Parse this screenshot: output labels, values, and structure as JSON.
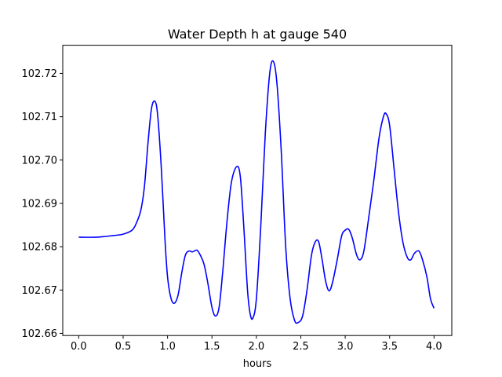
{
  "chart_data": {
    "type": "line",
    "title": "Water Depth h at gauge 540",
    "xlabel": "hours",
    "ylabel": "",
    "xlim": [
      -0.18,
      4.2
    ],
    "ylim": [
      102.6595,
      102.7265
    ],
    "xticks": [
      0.0,
      0.5,
      1.0,
      1.5,
      2.0,
      2.5,
      3.0,
      3.5,
      4.0
    ],
    "xtick_labels": [
      "0.0",
      "0.5",
      "1.0",
      "1.5",
      "2.0",
      "2.5",
      "3.0",
      "3.5",
      "4.0"
    ],
    "yticks": [
      102.66,
      102.67,
      102.68,
      102.69,
      102.7,
      102.71,
      102.72
    ],
    "ytick_labels": [
      "102.66",
      "102.67",
      "102.68",
      "102.69",
      "102.70",
      "102.71",
      "102.72"
    ],
    "grid": false,
    "series": [
      {
        "color": "#0000ff",
        "points": [
          [
            0.0,
            102.6822
          ],
          [
            0.2,
            102.6822
          ],
          [
            0.4,
            102.6826
          ],
          [
            0.5,
            102.6829
          ],
          [
            0.6,
            102.6838
          ],
          [
            0.65,
            102.6855
          ],
          [
            0.7,
            102.6885
          ],
          [
            0.74,
            102.694
          ],
          [
            0.78,
            102.704
          ],
          [
            0.82,
            102.712
          ],
          [
            0.86,
            102.7135
          ],
          [
            0.89,
            102.71
          ],
          [
            0.93,
            102.698
          ],
          [
            0.97,
            102.682
          ],
          [
            1.0,
            102.673
          ],
          [
            1.04,
            102.668
          ],
          [
            1.08,
            102.667
          ],
          [
            1.12,
            102.669
          ],
          [
            1.16,
            102.674
          ],
          [
            1.2,
            102.678
          ],
          [
            1.24,
            102.679
          ],
          [
            1.28,
            102.6788
          ],
          [
            1.33,
            102.6792
          ],
          [
            1.37,
            102.678
          ],
          [
            1.41,
            102.676
          ],
          [
            1.45,
            102.672
          ],
          [
            1.5,
            102.666
          ],
          [
            1.54,
            102.664
          ],
          [
            1.58,
            102.666
          ],
          [
            1.62,
            102.674
          ],
          [
            1.67,
            102.686
          ],
          [
            1.72,
            102.695
          ],
          [
            1.78,
            102.6985
          ],
          [
            1.82,
            102.696
          ],
          [
            1.86,
            102.684
          ],
          [
            1.9,
            102.67
          ],
          [
            1.93,
            102.6645
          ],
          [
            1.96,
            102.6635
          ],
          [
            2.0,
            102.668
          ],
          [
            2.05,
            102.685
          ],
          [
            2.1,
            102.706
          ],
          [
            2.15,
            102.72
          ],
          [
            2.19,
            102.7228
          ],
          [
            2.23,
            102.718
          ],
          [
            2.28,
            102.702
          ],
          [
            2.33,
            102.68
          ],
          [
            2.38,
            102.668
          ],
          [
            2.43,
            102.663
          ],
          [
            2.47,
            102.6625
          ],
          [
            2.52,
            102.664
          ],
          [
            2.57,
            102.67
          ],
          [
            2.62,
            102.678
          ],
          [
            2.66,
            102.681
          ],
          [
            2.7,
            102.6812
          ],
          [
            2.74,
            102.677
          ],
          [
            2.78,
            102.672
          ],
          [
            2.82,
            102.6698
          ],
          [
            2.86,
            102.672
          ],
          [
            2.91,
            102.677
          ],
          [
            2.96,
            102.6825
          ],
          [
            3.0,
            102.6838
          ],
          [
            3.04,
            102.684
          ],
          [
            3.08,
            102.682
          ],
          [
            3.13,
            102.678
          ],
          [
            3.17,
            102.677
          ],
          [
            3.21,
            102.679
          ],
          [
            3.26,
            102.686
          ],
          [
            3.32,
            102.695
          ],
          [
            3.38,
            102.705
          ],
          [
            3.43,
            102.71
          ],
          [
            3.46,
            102.7107
          ],
          [
            3.5,
            102.708
          ],
          [
            3.55,
            102.698
          ],
          [
            3.6,
            102.688
          ],
          [
            3.65,
            102.681
          ],
          [
            3.7,
            102.6775
          ],
          [
            3.74,
            102.677
          ],
          [
            3.78,
            102.6785
          ],
          [
            3.83,
            102.679
          ],
          [
            3.87,
            102.677
          ],
          [
            3.92,
            102.673
          ],
          [
            3.96,
            102.668
          ],
          [
            4.0,
            102.6658
          ]
        ]
      }
    ]
  }
}
